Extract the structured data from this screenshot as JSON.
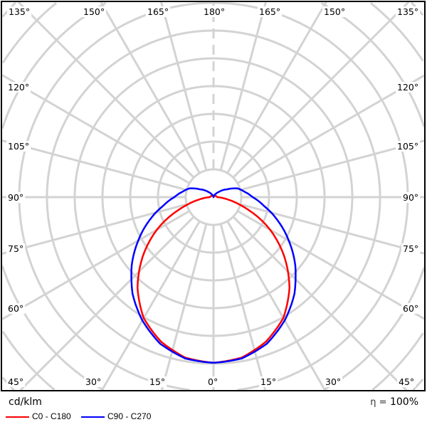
{
  "chart_data": {
    "type": "polar",
    "units": "cd/klm",
    "efficiency_symbol": "η =",
    "efficiency": "100%",
    "angle_labels_top": [
      "135°",
      "150°",
      "165°",
      "180°",
      "165°",
      "150°",
      "135°"
    ],
    "angle_labels_side": [
      "120°",
      "105°",
      "90°",
      "75°",
      "60°"
    ],
    "angle_labels_bottom": [
      "45°",
      "30°",
      "15°",
      "0°",
      "15°",
      "30°",
      "45°"
    ],
    "angle_step_deg": 15,
    "grid": true,
    "series": [
      {
        "name": "C0 - C180",
        "color": "#ff0000",
        "gamma": [
          0,
          10,
          20,
          30,
          40,
          50,
          60,
          70,
          75,
          80,
          85,
          90,
          180
        ],
        "intensity_rings": [
          5.97,
          5.87,
          5.54,
          5.03,
          4.26,
          3.33,
          2.36,
          1.33,
          0.9,
          0.56,
          0.31,
          0.13,
          0
        ]
      },
      {
        "name": "C90 - C270",
        "color": "#0000ff",
        "gamma": [
          0,
          10,
          20,
          30,
          40,
          45,
          50,
          60,
          70,
          80,
          90,
          100,
          110,
          120,
          135,
          150,
          180
        ],
        "intensity_rings": [
          5.97,
          5.9,
          5.62,
          5.13,
          4.54,
          4.18,
          3.85,
          3.13,
          2.46,
          1.85,
          1.41,
          1.13,
          0.92,
          0.56,
          0.26,
          0.1,
          0
        ]
      }
    ]
  }
}
